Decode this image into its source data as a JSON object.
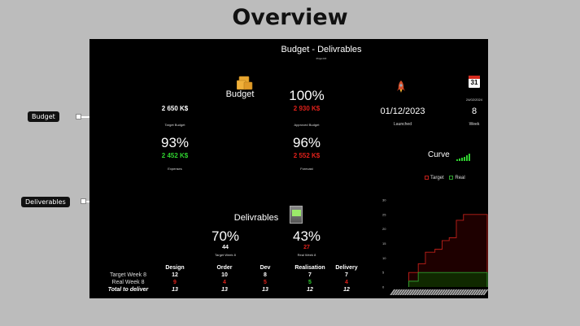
{
  "page": {
    "title": "Overview"
  },
  "annotations": {
    "budget_label": "Budget",
    "deliverables_label": "Deliverables"
  },
  "slide": {
    "title": "Budget - Delivrables",
    "subtitle": "Projet DX",
    "budget": {
      "heading": "Budget",
      "icon": "money-stack-icon",
      "target_budget": {
        "value": "2 650 K$",
        "caption": "Target Budget"
      },
      "approved_budget": {
        "percent": "100%",
        "value": "2 930 K$",
        "caption": "Approved Budget"
      },
      "expenses": {
        "percent": "93%",
        "value": "2 452 K$",
        "caption": "Expenses"
      },
      "forecast": {
        "percent": "96%",
        "value": "2 552 K$",
        "caption": "Forecast"
      }
    },
    "project": {
      "launched": {
        "icon": "rocket-icon",
        "date": "01/12/2023",
        "caption": "Launched"
      },
      "week": {
        "icon": "calendar-icon",
        "calendar_day": "31",
        "date": "24/02/2024",
        "value": "8",
        "caption": "Week"
      }
    },
    "curve": {
      "heading": "Curve",
      "icon": "signal-bars-icon",
      "legend": [
        {
          "label": "Target",
          "color": "#c0201a"
        },
        {
          "label": "Real",
          "color": "#2fa02f"
        }
      ]
    },
    "deliverables": {
      "heading": "Delivrables",
      "icon": "flag-icon",
      "target": {
        "percent": "70%",
        "value": "44",
        "caption": "Target Week 8"
      },
      "real": {
        "percent": "43%",
        "value": "27",
        "caption": "Real Week 8"
      }
    },
    "table": {
      "columns": [
        "Design",
        "Order",
        "Dev",
        "Realisation",
        "Delivery"
      ],
      "rows": [
        {
          "label": "Target  Week 8",
          "values": [
            "12",
            "10",
            "8",
            "7",
            "7"
          ]
        },
        {
          "label": "Real  Week 8",
          "values": [
            "9",
            "4",
            "5",
            "5",
            "4"
          ]
        },
        {
          "label": "Total to deliver",
          "values": [
            "13",
            "13",
            "13",
            "12",
            "12"
          ]
        }
      ]
    }
  },
  "chart_data": {
    "type": "line",
    "title": "Curve",
    "xlabel": "",
    "ylabel": "",
    "ylim": [
      0,
      30
    ],
    "yticks": [
      0,
      5,
      10,
      15,
      20,
      25,
      30
    ],
    "grid": false,
    "legend_position": "top",
    "x": [
      1,
      2,
      3,
      4,
      5,
      6,
      7,
      8,
      9,
      10,
      11,
      12,
      13,
      14,
      15,
      16,
      17,
      18,
      19,
      20,
      21,
      22,
      23,
      24,
      25,
      26,
      27,
      28,
      29,
      30,
      31,
      32,
      33,
      34,
      35,
      36,
      37,
      38,
      39,
      40
    ],
    "series": [
      {
        "name": "Target",
        "color": "#c0201a",
        "step": true,
        "values": [
          0,
          0,
          0,
          0,
          0,
          0,
          0,
          5,
          5,
          5,
          5,
          8,
          8,
          8,
          12,
          12,
          12,
          12,
          13,
          13,
          13,
          16,
          16,
          16,
          17,
          17,
          17,
          23,
          23,
          23,
          25,
          25,
          25,
          25,
          25,
          25,
          25,
          25,
          25,
          25
        ]
      },
      {
        "name": "Real",
        "color": "#2fa02f",
        "step": true,
        "values": [
          0,
          0,
          0,
          0,
          0,
          0,
          0,
          2,
          2,
          2,
          2,
          5,
          5,
          5,
          5,
          5,
          5,
          5,
          5,
          5,
          5,
          5,
          5,
          5,
          5,
          5,
          5,
          5,
          5,
          5,
          5,
          5,
          5,
          5,
          5,
          5,
          5,
          5,
          5,
          5
        ]
      }
    ]
  }
}
